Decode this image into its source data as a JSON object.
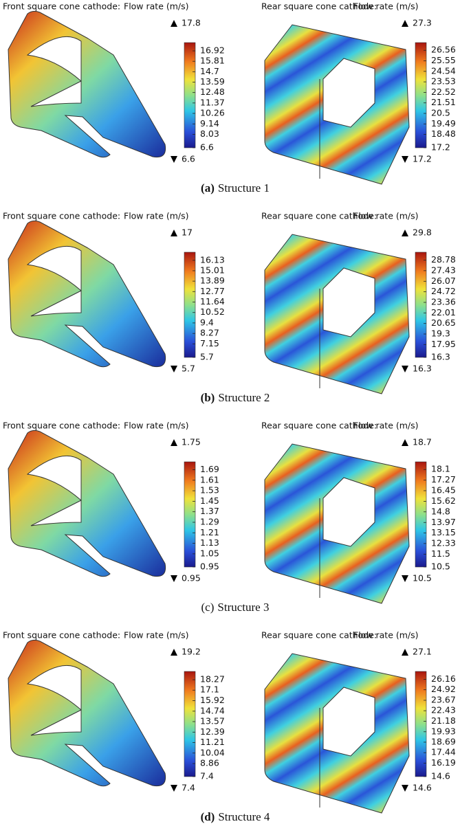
{
  "panels": [
    {
      "caption": {
        "label": "(a)",
        "text": "Structure 1",
        "bold": true
      },
      "plots": [
        {
          "title": "Front square cone cathode:",
          "quantity": "Flow rate (m/s)",
          "max": 17.8,
          "min": 6.6,
          "ticks": [
            16.92,
            15.81,
            14.7,
            13.59,
            12.48,
            11.37,
            10.26,
            9.14,
            8.03,
            6.6
          ]
        },
        {
          "title": "Rear square cone cathode:",
          "quantity": "Flow rate (m/s)",
          "max": 27.3,
          "min": 17.2,
          "ticks": [
            26.56,
            25.55,
            24.54,
            23.53,
            22.52,
            21.51,
            20.5,
            19.49,
            18.48,
            17.2
          ]
        }
      ]
    },
    {
      "caption": {
        "label": "(b)",
        "text": "Structure 2",
        "bold": true
      },
      "plots": [
        {
          "title": "Front square cone cathode:",
          "quantity": "Flow rate (m/s)",
          "max": 17,
          "min": 5.7,
          "ticks": [
            16.13,
            15.01,
            13.89,
            12.77,
            11.64,
            10.52,
            9.4,
            8.27,
            7.15,
            5.7
          ]
        },
        {
          "title": "Rear square cone cathode:",
          "quantity": "Flow rate (m/s)",
          "max": 29.8,
          "min": 16.3,
          "ticks": [
            28.78,
            27.43,
            26.07,
            24.72,
            23.36,
            22.01,
            20.65,
            19.3,
            17.95,
            16.3
          ]
        }
      ]
    },
    {
      "caption": {
        "label": "(c)",
        "text": "Structure 3",
        "bold": false
      },
      "plots": [
        {
          "title": "Front square cone cathode:",
          "quantity": "Flow rate (m/s)",
          "max": 1.75,
          "min": 0.95,
          "ticks": [
            1.69,
            1.61,
            1.53,
            1.45,
            1.37,
            1.29,
            1.21,
            1.13,
            1.05,
            0.95
          ]
        },
        {
          "title": "Rear square cone cathode:",
          "quantity": "Flow rate (m/s)",
          "max": 18.7,
          "min": 10.5,
          "ticks": [
            18.1,
            17.27,
            16.45,
            15.62,
            14.8,
            13.97,
            13.15,
            12.33,
            11.5,
            10.5
          ]
        }
      ]
    },
    {
      "caption": {
        "label": "(d)",
        "text": "Structure 4",
        "bold": true
      },
      "plots": [
        {
          "title": "Front square cone cathode:",
          "quantity": "Flow rate (m/s)",
          "max": 19.2,
          "min": 7.4,
          "ticks": [
            18.27,
            17.1,
            15.92,
            14.74,
            13.57,
            12.39,
            11.21,
            10.04,
            8.86,
            7.4
          ]
        },
        {
          "title": "Rear square cone cathode:",
          "quantity": "Flow rate (m/s)",
          "max": 27.1,
          "min": 14.6,
          "ticks": [
            26.16,
            24.92,
            23.67,
            22.43,
            21.18,
            19.93,
            18.69,
            17.44,
            16.19,
            14.6
          ]
        }
      ]
    }
  ]
}
